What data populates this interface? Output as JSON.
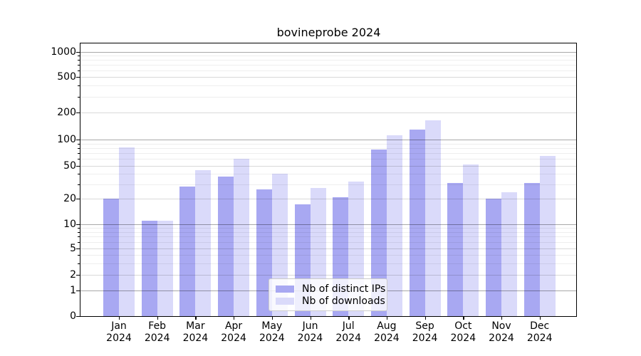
{
  "chart_data": {
    "type": "bar",
    "title": "bovineprobe 2024",
    "categories": [
      "Jan 2024",
      "Feb 2024",
      "Mar 2024",
      "Apr 2024",
      "May 2024",
      "Jun 2024",
      "Jul 2024",
      "Aug 2024",
      "Sep 2024",
      "Oct 2024",
      "Nov 2024",
      "Dec 2024"
    ],
    "months": [
      "Jan",
      "Feb",
      "Mar",
      "Apr",
      "May",
      "Jun",
      "Jul",
      "Aug",
      "Sep",
      "Oct",
      "Nov",
      "Dec"
    ],
    "year": "2024",
    "series": [
      {
        "name": "Nb of distinct IPs",
        "color": "#a8a8f2",
        "values": [
          20,
          11,
          28,
          37,
          26,
          17,
          21,
          77,
          128,
          31,
          20,
          31
        ]
      },
      {
        "name": "Nb of downloads",
        "color": "#dadafa",
        "values": [
          82,
          11,
          44,
          60,
          40,
          27,
          32,
          112,
          165,
          52,
          24,
          65
        ]
      }
    ],
    "yscale": "symlog",
    "ylim": [
      0,
      1260
    ],
    "y_ticks": [
      1000,
      500,
      200,
      100,
      50,
      20,
      10,
      5,
      2,
      1,
      0
    ],
    "y_minor_ticks": [
      900,
      800,
      700,
      600,
      400,
      300,
      90,
      80,
      70,
      60,
      40,
      30,
      9,
      8,
      7,
      6,
      4,
      3
    ],
    "grid": true,
    "legend_position": "lower center",
    "xlabel": "",
    "ylabel": ""
  }
}
